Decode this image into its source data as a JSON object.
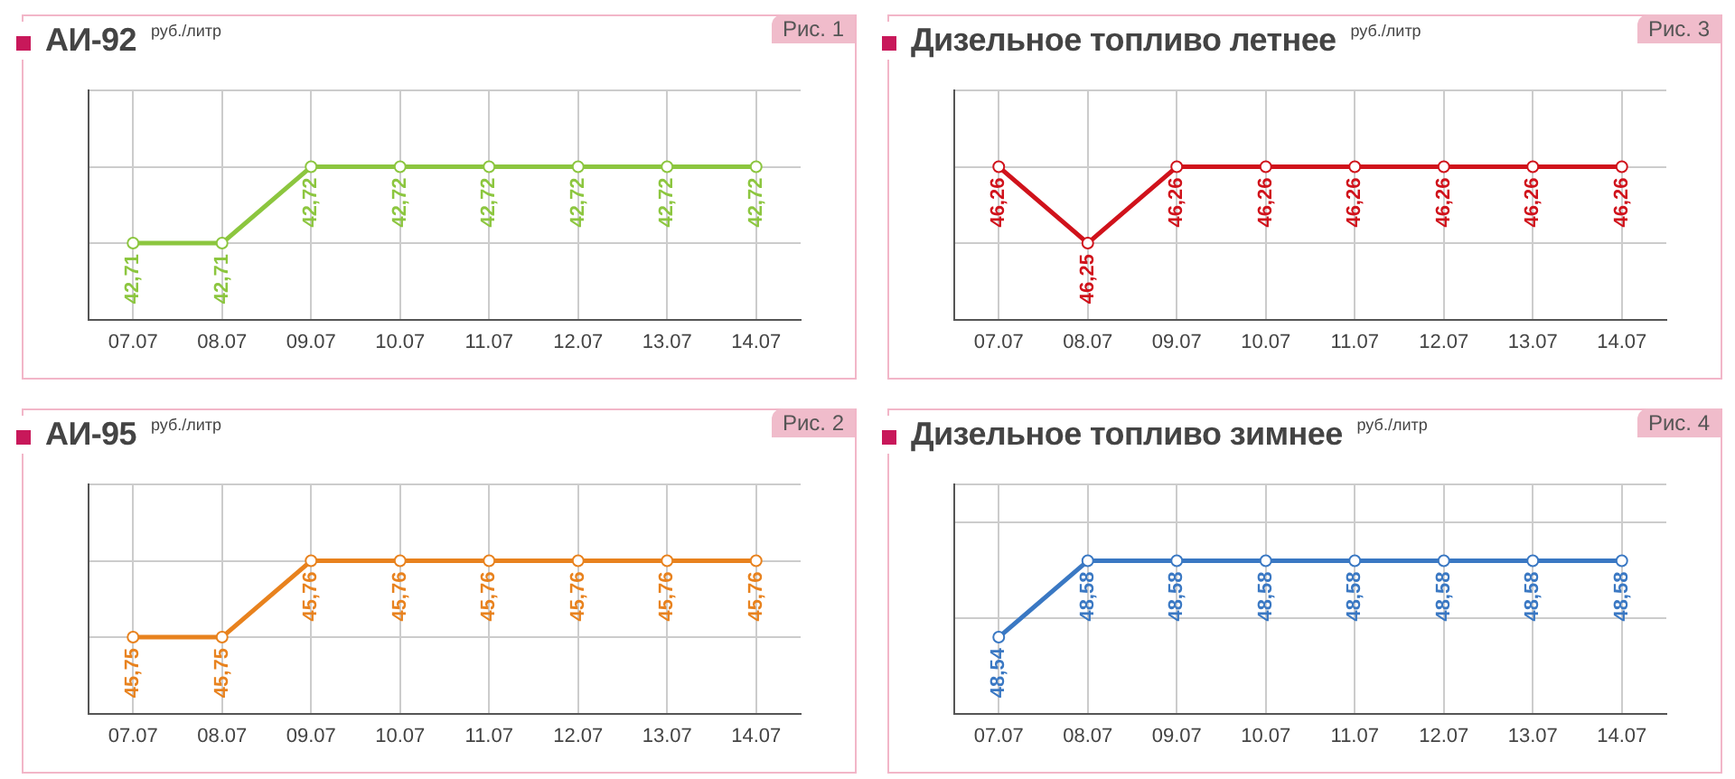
{
  "chart_data": [
    {
      "type": "line",
      "title": "АИ-92",
      "subtitle": "руб./литр",
      "annotations": [
        "Рис. 1"
      ],
      "categories": [
        "07.07",
        "08.07",
        "09.07",
        "10.07",
        "11.07",
        "12.07",
        "13.07",
        "14.07"
      ],
      "series": [
        {
          "color": "#8cc63f",
          "values": [
            42.71,
            42.71,
            42.72,
            42.72,
            42.72,
            42.72,
            42.72,
            42.72
          ],
          "value_labels": [
            "42,71",
            "42,71",
            "42,72",
            "42,72",
            "42,72",
            "42,72",
            "42,72",
            "42,72"
          ]
        }
      ],
      "grid": true,
      "marker": "circle",
      "tick_labels": "x"
    },
    {
      "type": "line",
      "title": "Дизельное топливо летнее",
      "subtitle": "руб./литр",
      "annotations": [
        "Рис. 3"
      ],
      "categories": [
        "07.07",
        "08.07",
        "09.07",
        "10.07",
        "11.07",
        "12.07",
        "13.07",
        "14.07"
      ],
      "series": [
        {
          "color": "#d0121b",
          "values": [
            46.26,
            46.25,
            46.26,
            46.26,
            46.26,
            46.26,
            46.26,
            46.26
          ],
          "value_labels": [
            "46,26",
            "46,25",
            "46,26",
            "46,26",
            "46,26",
            "46,26",
            "46,26",
            "46,26"
          ]
        }
      ],
      "grid": true,
      "marker": "circle",
      "tick_labels": "x"
    },
    {
      "type": "line",
      "title": "АИ-95",
      "subtitle": "руб./литр",
      "annotations": [
        "Рис. 2"
      ],
      "categories": [
        "07.07",
        "08.07",
        "09.07",
        "10.07",
        "11.07",
        "12.07",
        "13.07",
        "14.07"
      ],
      "series": [
        {
          "color": "#e8821e",
          "values": [
            45.75,
            45.75,
            45.76,
            45.76,
            45.76,
            45.76,
            45.76,
            45.76
          ],
          "value_labels": [
            "45,75",
            "45,75",
            "45,76",
            "45,76",
            "45,76",
            "45,76",
            "45,76",
            "45,76"
          ]
        }
      ],
      "grid": true,
      "marker": "circle",
      "tick_labels": "x"
    },
    {
      "type": "line",
      "title": "Дизельное топливо зимнее",
      "subtitle": "руб./литр",
      "annotations": [
        "Рис. 4"
      ],
      "categories": [
        "07.07",
        "08.07",
        "09.07",
        "10.07",
        "11.07",
        "12.07",
        "13.07",
        "14.07"
      ],
      "series": [
        {
          "color": "#3a78c3",
          "values": [
            48.54,
            48.58,
            48.58,
            48.58,
            48.58,
            48.58,
            48.58,
            48.58
          ],
          "value_labels": [
            "48,54",
            "48,58",
            "48,58",
            "48,58",
            "48,58",
            "48,58",
            "48,58",
            "48,58"
          ]
        }
      ],
      "grid": true,
      "marker": "circle",
      "tick_labels": "x"
    }
  ]
}
